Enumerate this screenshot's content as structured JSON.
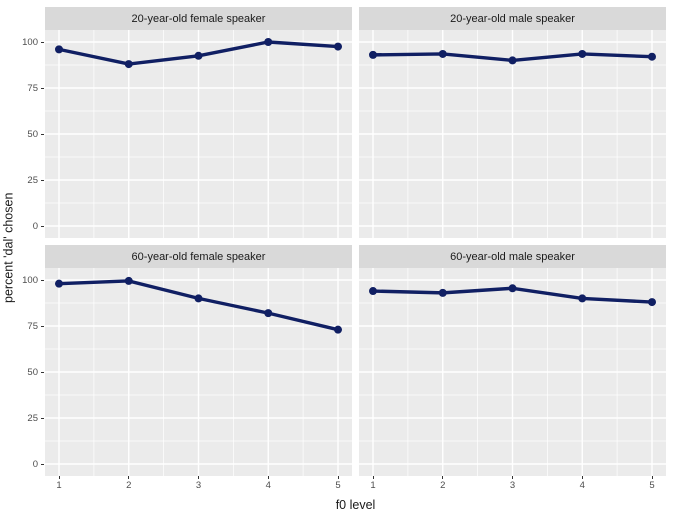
{
  "chart_data": {
    "type": "line",
    "title": "",
    "xlabel": "f0 level",
    "ylabel": "percent 'dal' chosen",
    "x": [
      1,
      2,
      3,
      4,
      5
    ],
    "x_ticks": [
      "1",
      "2",
      "3",
      "4",
      "5"
    ],
    "y_ticks": [
      "100",
      "75",
      "50",
      "25",
      "0"
    ],
    "y_tick_values": [
      100,
      75,
      50,
      25,
      0
    ],
    "ylim": [
      0,
      100
    ],
    "grid": "on",
    "legend": "none",
    "colors": {
      "line": "#101f63",
      "panel_bg": "#ebebeb",
      "strip_bg": "#d9d9d9",
      "gridline": "#ffffff",
      "tick_text": "#4d4d4d"
    },
    "facets": [
      {
        "label": "20-year-old female speaker",
        "values": [
          96,
          88,
          92.5,
          100,
          97.5
        ]
      },
      {
        "label": "20-year-old male speaker",
        "values": [
          93,
          93.5,
          90,
          93.5,
          92
        ]
      },
      {
        "label": "60-year-old female speaker",
        "values": [
          98,
          99.5,
          90,
          82,
          73
        ]
      },
      {
        "label": "60-year-old male speaker",
        "values": [
          94,
          93,
          95.5,
          90,
          88
        ]
      }
    ]
  }
}
